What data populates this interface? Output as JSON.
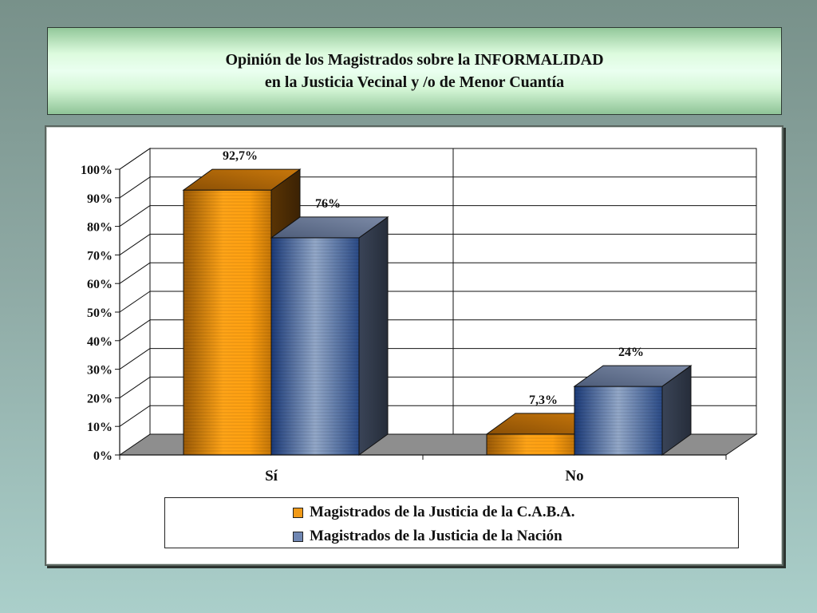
{
  "title": {
    "line1": "Opinión de los Magistrados sobre la INFORMALIDAD",
    "line2": "en la Justicia Vecinal y /o de Menor Cuantía"
  },
  "chart_data": {
    "type": "bar",
    "categories": [
      "Sí",
      "No"
    ],
    "series": [
      {
        "name": "Magistrados de la Justicia de la C.A.B.A.",
        "values": [
          92.7,
          7.3
        ],
        "labels": [
          "92,7%",
          "7,3%"
        ],
        "color": "#f19a18"
      },
      {
        "name": "Magistrados de la Justicia de la Nación",
        "values": [
          76,
          24
        ],
        "labels": [
          "76%",
          "24%"
        ],
        "color": "#2d4a86"
      }
    ],
    "ylim": [
      0,
      100
    ],
    "yticks": [
      "0%",
      "10%",
      "20%",
      "30%",
      "40%",
      "50%",
      "60%",
      "70%",
      "80%",
      "90%",
      "100%"
    ],
    "grid": true,
    "three_d": true,
    "legend_position": "bottom"
  }
}
